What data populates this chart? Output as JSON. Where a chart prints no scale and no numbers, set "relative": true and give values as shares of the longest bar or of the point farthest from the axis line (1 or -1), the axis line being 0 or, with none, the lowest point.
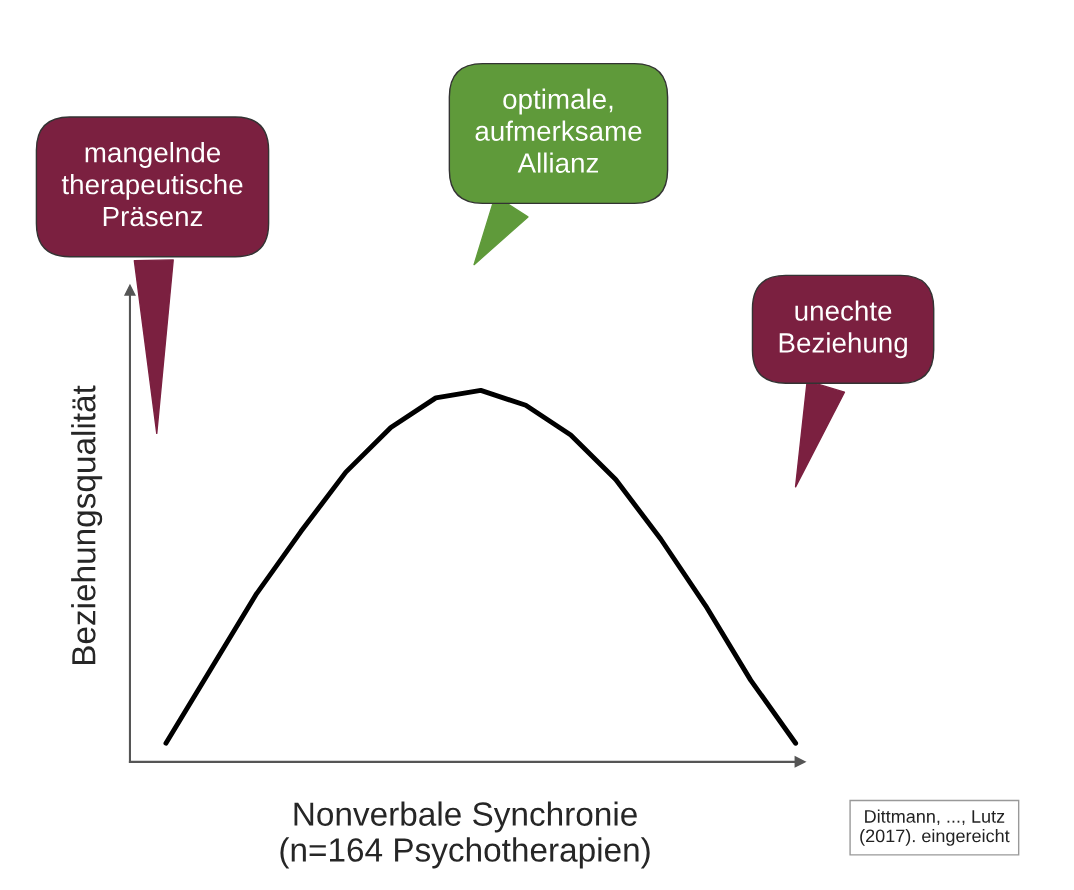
{
  "chart_data": {
    "type": "line",
    "relative": true,
    "color": "#000000",
    "xlabel": "Nonverbale Synchronie\n(n=164 Psychotherapien)",
    "ylabel": "Beziehungsqualität",
    "categories": [
      null,
      null,
      null,
      null,
      null,
      null,
      null,
      null,
      null,
      null,
      null,
      null,
      null,
      null,
      null
    ],
    "values": [
      0.05,
      0.25,
      0.45,
      0.62,
      0.78,
      0.9,
      0.98,
      1.0,
      0.96,
      0.88,
      0.76,
      0.6,
      0.42,
      0.22,
      0.05
    ],
    "annotations": [
      "mangelnde\ntherapeutische\nPräsenz",
      "optimale,\naufmerksame\nAllianz",
      "unechte\nBeziehung",
      "Dittmann, ..., Lutz\n(2017). eingereicht"
    ]
  }
}
